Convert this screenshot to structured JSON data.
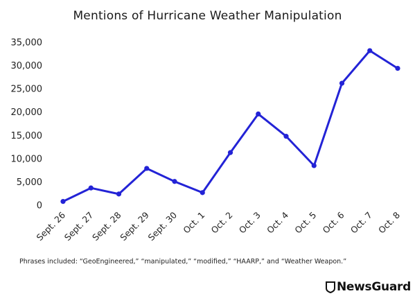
{
  "chart_data": {
    "type": "line",
    "title": "Mentions of Hurricane Weather Manipulation",
    "categories": [
      "Sept. 26",
      "Sept. 27",
      "Sept. 28",
      "Sept. 29",
      "Sept. 30",
      "Oct. 1",
      "Oct. 2",
      "Oct. 3",
      "Oct. 4",
      "Oct. 5",
      "Oct. 6",
      "Oct. 7",
      "Oct. 8"
    ],
    "series": [
      {
        "values": [
          800,
          3700,
          2400,
          7900,
          5100,
          2700,
          11300,
          19600,
          14800,
          8500,
          26200,
          33200,
          29400
        ]
      }
    ],
    "yticks": [
      "0",
      "5,000",
      "10,000",
      "15,000",
      "20,000",
      "25,000",
      "30,000",
      "35,000"
    ],
    "ylim": [
      0,
      35000
    ],
    "grid": false,
    "line_color": "#2323d6"
  },
  "footnote": "Phrases included: “GeoEngineered,” “manipulated,” “modified,” “HAARP,” and “Weather Weapon.”",
  "brand": {
    "name": "NewsGuard",
    "icon": "newsguard-shield-icon"
  }
}
